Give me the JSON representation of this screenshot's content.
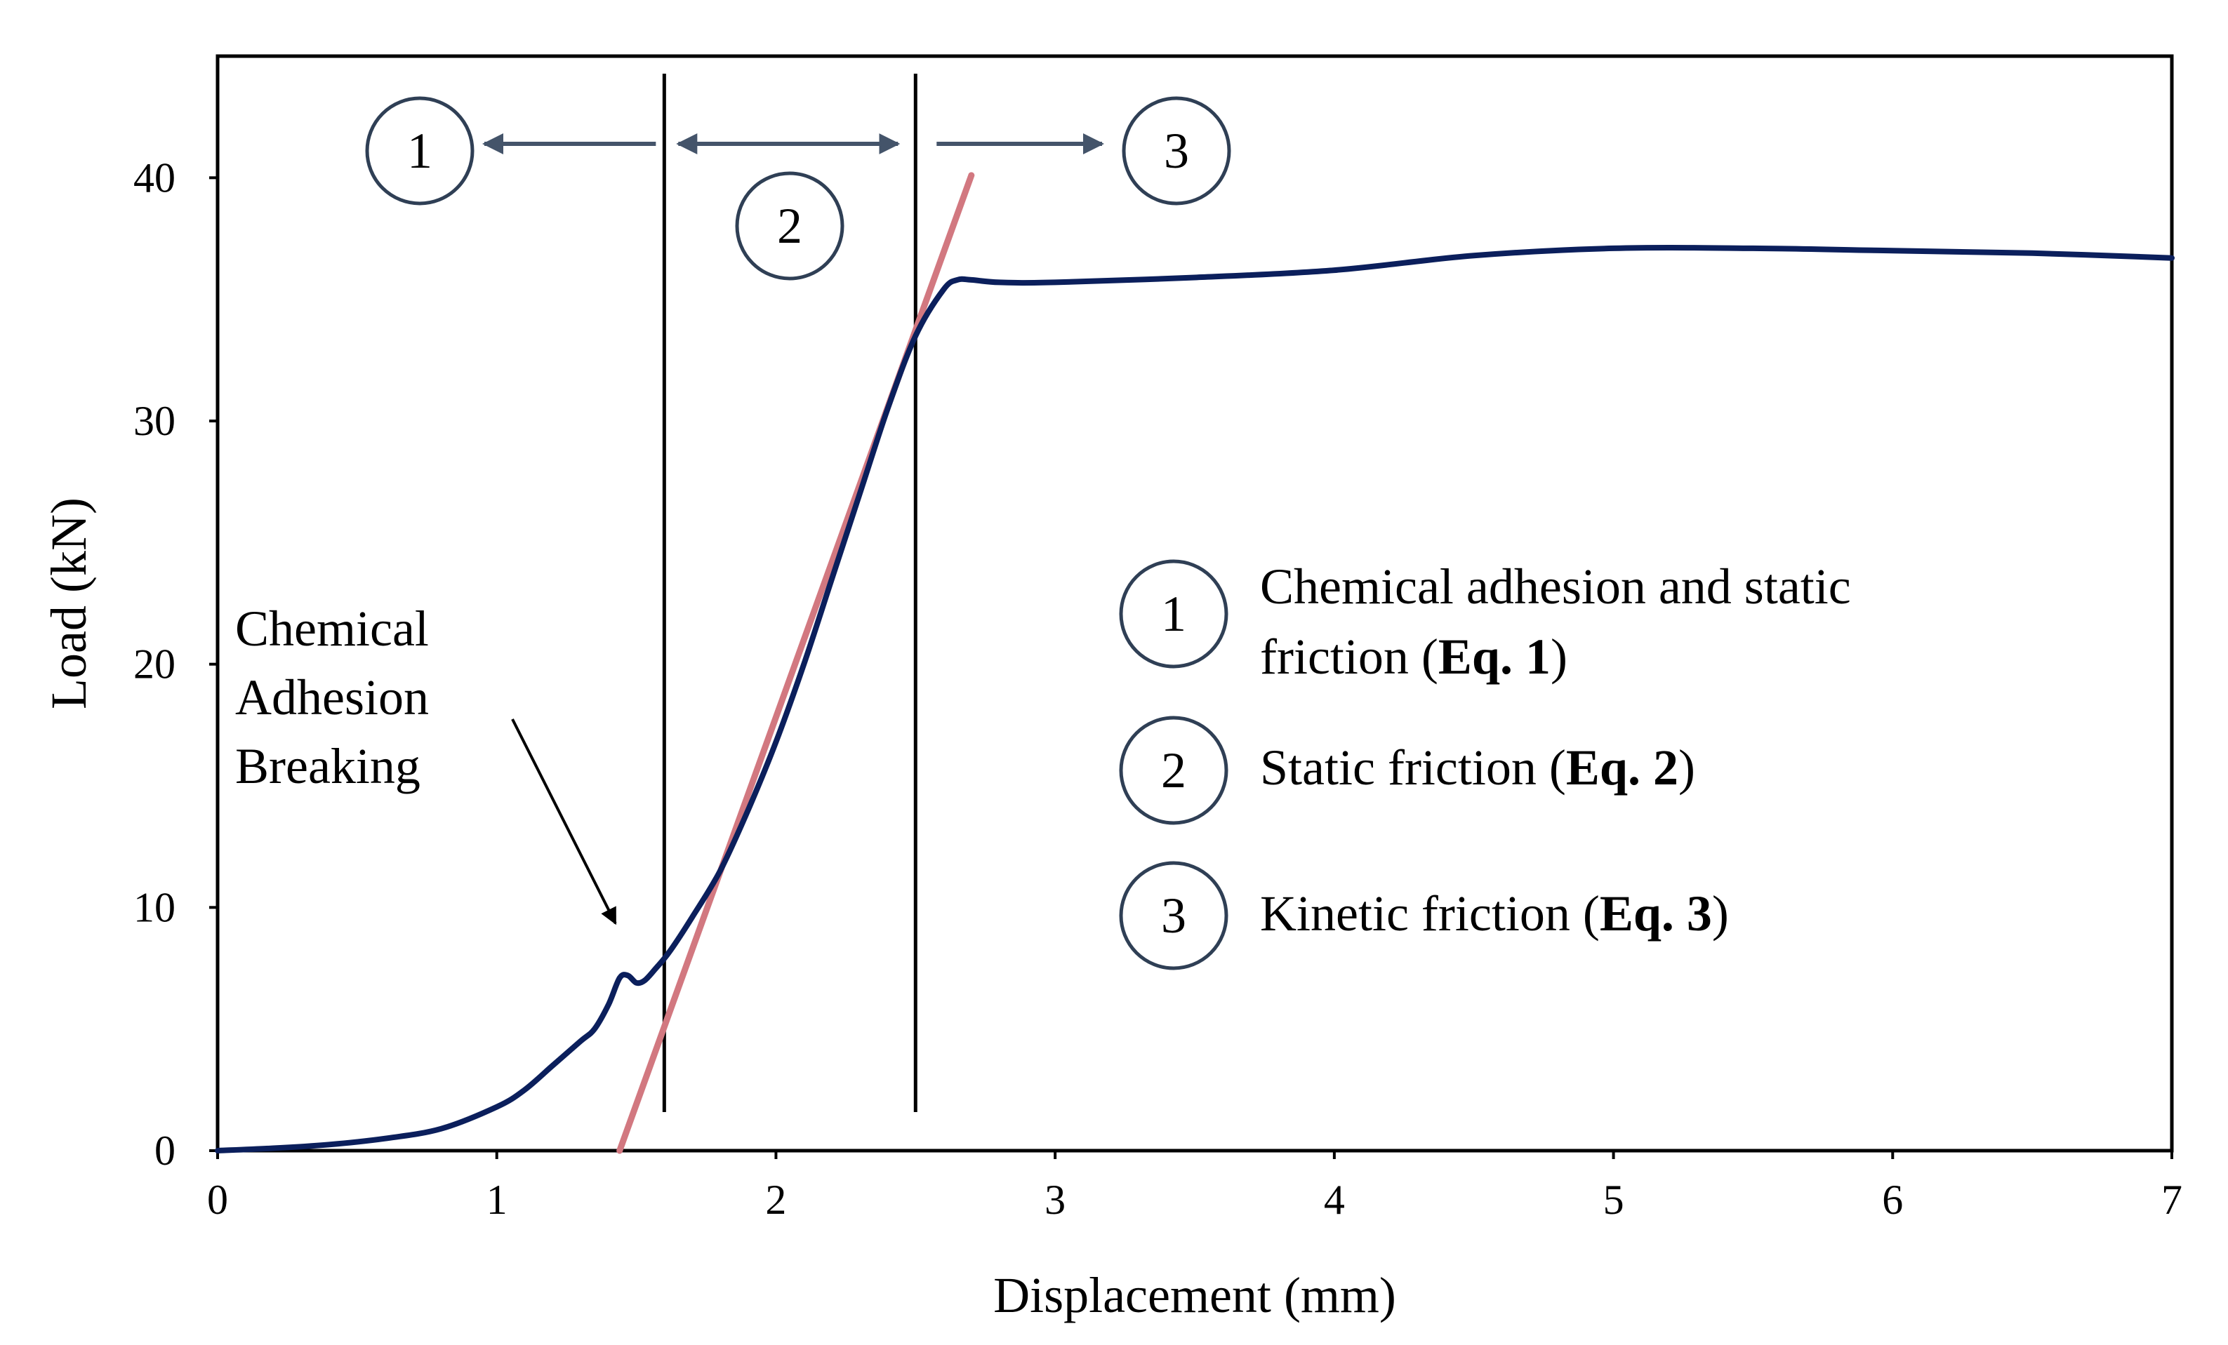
{
  "chart_data": {
    "type": "line",
    "xlabel": "Displacement (mm)",
    "ylabel": "Load (kN)",
    "xlim": [
      0,
      7
    ],
    "ylim": [
      0,
      45
    ],
    "x_ticks": [
      0,
      1,
      2,
      3,
      4,
      5,
      6,
      7
    ],
    "y_ticks": [
      0,
      10,
      20,
      30,
      40
    ],
    "grid": false,
    "series": [
      {
        "color": "#0b1f5c",
        "x": [
          0,
          0.2,
          0.4,
          0.6,
          0.8,
          1.0,
          1.1,
          1.2,
          1.3,
          1.35,
          1.4,
          1.44,
          1.47,
          1.5,
          1.53,
          1.57,
          1.62,
          1.7,
          1.8,
          1.9,
          2.0,
          2.1,
          2.2,
          2.3,
          2.4,
          2.5,
          2.6,
          2.65,
          2.7,
          2.8,
          3.0,
          3.5,
          4.0,
          4.5,
          5.0,
          5.5,
          6.0,
          6.5,
          7.0
        ],
        "y": [
          0,
          0.1,
          0.25,
          0.5,
          0.9,
          1.8,
          2.5,
          3.5,
          4.5,
          5.0,
          6.0,
          7.1,
          7.2,
          6.9,
          7.0,
          7.5,
          8.2,
          9.6,
          11.5,
          14.0,
          16.8,
          20.0,
          23.5,
          27.0,
          30.5,
          33.5,
          35.4,
          35.8,
          35.8,
          35.7,
          35.7,
          35.9,
          36.2,
          36.8,
          37.1,
          37.1,
          37.0,
          36.9,
          36.7
        ]
      }
    ],
    "fit_line": {
      "color": "#d27880",
      "x": [
        1.44,
        2.7
      ],
      "y": [
        0,
        40.1
      ]
    },
    "boundaries": [
      1.6,
      2.5
    ],
    "region_labels": [
      "1",
      "2",
      "3"
    ],
    "annotation": {
      "lines": [
        "Chemical",
        "Adhesion",
        "Breaking"
      ],
      "point": [
        1.4,
        9.2
      ]
    },
    "legend": [
      {
        "number": "1",
        "lines": [
          {
            "text": "Chemical adhesion and static",
            "eq": ""
          },
          {
            "text": "friction (",
            "eq": "Eq. 1",
            "end": ")"
          }
        ]
      },
      {
        "number": "2",
        "lines": [
          {
            "text": "Static friction (",
            "eq": "Eq. 2",
            "end": ")"
          }
        ]
      },
      {
        "number": "3",
        "lines": [
          {
            "text": "Kinetic friction (",
            "eq": "Eq. 3",
            "end": ")"
          }
        ]
      }
    ],
    "colors": {
      "arrow": "#44546a",
      "circle": "#2f3f55"
    }
  }
}
